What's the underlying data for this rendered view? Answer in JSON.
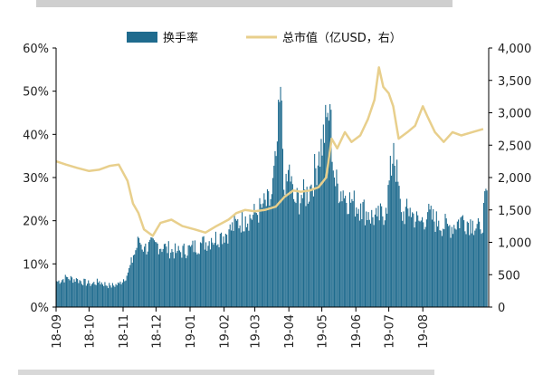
{
  "chart_data": {
    "type": "area",
    "title": "",
    "legend": {
      "placement": "top-center"
    },
    "grid": false,
    "x": {
      "type": "date",
      "range": [
        "2018-09-01",
        "2019-09-30"
      ],
      "tick_labels": [
        "18-09",
        "18-10",
        "18-11",
        "18-12",
        "19-01",
        "19-02",
        "19-03",
        "19-04",
        "19-05",
        "19-06",
        "19-07",
        "19-08"
      ]
    },
    "y_left": {
      "range": [
        0,
        60
      ],
      "unit": "%",
      "tick_labels": [
        "0%",
        "10%",
        "20%",
        "30%",
        "40%",
        "50%",
        "60%"
      ]
    },
    "y_right": {
      "range": [
        0,
        4000
      ],
      "tick_labels": [
        "0",
        "500",
        "1,000",
        "1,500",
        "2,000",
        "2,500",
        "3,000",
        "3,500",
        "4,000"
      ]
    },
    "series": [
      {
        "name": "换手率",
        "type": "bar",
        "axis": "left",
        "color": "#1f6b8e",
        "points": [
          [
            "2018-09-01",
            6
          ],
          [
            "2018-09-10",
            7
          ],
          [
            "2018-09-20",
            6.5
          ],
          [
            "2018-10-01",
            5.5
          ],
          [
            "2018-10-10",
            6
          ],
          [
            "2018-10-20",
            5
          ],
          [
            "2018-10-28",
            5.5
          ],
          [
            "2018-11-05",
            8
          ],
          [
            "2018-11-10",
            12
          ],
          [
            "2018-11-15",
            16
          ],
          [
            "2018-11-20",
            14
          ],
          [
            "2018-12-01",
            15
          ],
          [
            "2018-12-10",
            14
          ],
          [
            "2018-12-20",
            13
          ],
          [
            "2019-01-01",
            14
          ],
          [
            "2019-01-10",
            15
          ],
          [
            "2019-01-20",
            16
          ],
          [
            "2019-01-28",
            17
          ],
          [
            "2019-02-05",
            18
          ],
          [
            "2019-02-12",
            20
          ],
          [
            "2019-02-20",
            21
          ],
          [
            "2019-03-01",
            22
          ],
          [
            "2019-03-08",
            24
          ],
          [
            "2019-03-15",
            25
          ],
          [
            "2019-03-20",
            35
          ],
          [
            "2019-03-24",
            51
          ],
          [
            "2019-03-28",
            26
          ],
          [
            "2019-04-01",
            33
          ],
          [
            "2019-04-05",
            25
          ],
          [
            "2019-04-12",
            26
          ],
          [
            "2019-04-20",
            28
          ],
          [
            "2019-04-28",
            36
          ],
          [
            "2019-05-05",
            44
          ],
          [
            "2019-05-08",
            47
          ],
          [
            "2019-05-12",
            30
          ],
          [
            "2019-05-20",
            27
          ],
          [
            "2019-05-28",
            25
          ],
          [
            "2019-06-05",
            24
          ],
          [
            "2019-06-12",
            22
          ],
          [
            "2019-06-20",
            21
          ],
          [
            "2019-06-28",
            23
          ],
          [
            "2019-07-05",
            38
          ],
          [
            "2019-07-12",
            22
          ],
          [
            "2019-07-20",
            23
          ],
          [
            "2019-07-28",
            20
          ],
          [
            "2019-08-05",
            22
          ],
          [
            "2019-08-15",
            20
          ],
          [
            "2019-08-25",
            19
          ],
          [
            "2019-09-05",
            21
          ],
          [
            "2019-09-15",
            20
          ],
          [
            "2019-09-22",
            18
          ],
          [
            "2019-09-28",
            27
          ]
        ]
      },
      {
        "name": "总市值（亿USD，右）",
        "type": "line",
        "axis": "right",
        "color": "#e8cf8c",
        "points": [
          [
            "2018-09-01",
            2250
          ],
          [
            "2018-09-10",
            2200
          ],
          [
            "2018-09-20",
            2150
          ],
          [
            "2018-10-01",
            2100
          ],
          [
            "2018-10-10",
            2120
          ],
          [
            "2018-10-20",
            2180
          ],
          [
            "2018-10-28",
            2200
          ],
          [
            "2018-11-05",
            1950
          ],
          [
            "2018-11-10",
            1600
          ],
          [
            "2018-11-15",
            1450
          ],
          [
            "2018-11-20",
            1200
          ],
          [
            "2018-11-28",
            1100
          ],
          [
            "2018-12-05",
            1300
          ],
          [
            "2018-12-15",
            1350
          ],
          [
            "2018-12-25",
            1250
          ],
          [
            "2019-01-05",
            1200
          ],
          [
            "2019-01-15",
            1150
          ],
          [
            "2019-01-25",
            1250
          ],
          [
            "2019-02-05",
            1350
          ],
          [
            "2019-02-12",
            1450
          ],
          [
            "2019-02-20",
            1500
          ],
          [
            "2019-03-01",
            1480
          ],
          [
            "2019-03-10",
            1500
          ],
          [
            "2019-03-20",
            1550
          ],
          [
            "2019-03-28",
            1700
          ],
          [
            "2019-04-05",
            1800
          ],
          [
            "2019-04-12",
            1780
          ],
          [
            "2019-04-20",
            1800
          ],
          [
            "2019-04-28",
            1850
          ],
          [
            "2019-05-05",
            2000
          ],
          [
            "2019-05-10",
            2600
          ],
          [
            "2019-05-15",
            2450
          ],
          [
            "2019-05-22",
            2700
          ],
          [
            "2019-05-28",
            2550
          ],
          [
            "2019-06-05",
            2650
          ],
          [
            "2019-06-12",
            2900
          ],
          [
            "2019-06-18",
            3200
          ],
          [
            "2019-06-22",
            3700
          ],
          [
            "2019-06-26",
            3400
          ],
          [
            "2019-07-01",
            3300
          ],
          [
            "2019-07-05",
            3100
          ],
          [
            "2019-07-10",
            2600
          ],
          [
            "2019-07-18",
            2700
          ],
          [
            "2019-07-25",
            2800
          ],
          [
            "2019-08-01",
            3100
          ],
          [
            "2019-08-05",
            2950
          ],
          [
            "2019-08-12",
            2700
          ],
          [
            "2019-08-20",
            2550
          ],
          [
            "2019-08-28",
            2700
          ],
          [
            "2019-09-05",
            2650
          ],
          [
            "2019-09-15",
            2700
          ],
          [
            "2019-09-25",
            2750
          ]
        ]
      }
    ]
  }
}
